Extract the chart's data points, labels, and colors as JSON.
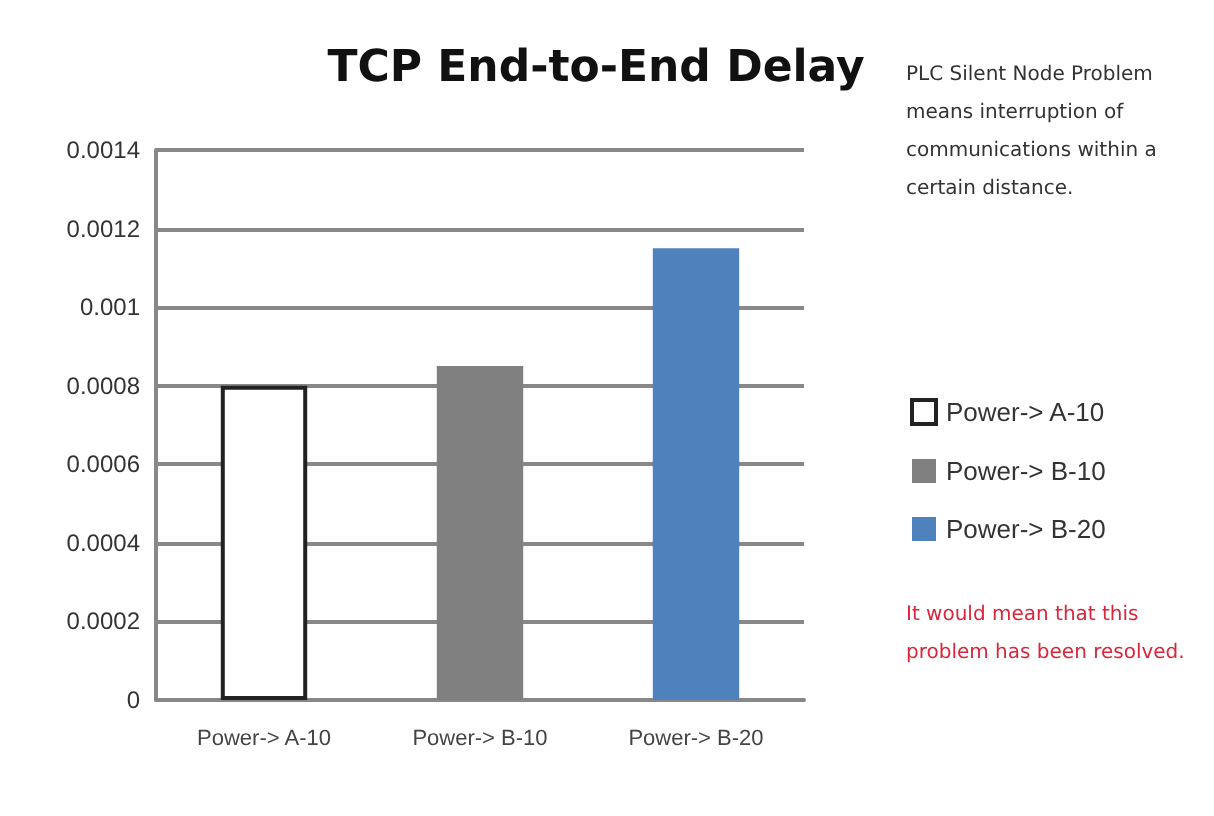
{
  "chart_data": {
    "type": "bar",
    "title": "TCP End-to-End Delay",
    "categories": [
      "Power-> A-10",
      "Power-> B-10",
      "Power-> B-20"
    ],
    "series": [
      {
        "name": "Power-> A-10",
        "color": "#ffffff",
        "values": [
          0.0008,
          null,
          null
        ]
      },
      {
        "name": "Power-> B-10",
        "color": "#808080",
        "values": [
          null,
          0.00085,
          null
        ]
      },
      {
        "name": "Power-> B-20",
        "color": "#4f81bd",
        "values": [
          null,
          null,
          0.00115
        ]
      }
    ],
    "ylim": [
      0,
      0.0014
    ],
    "yticks": [
      0,
      0.0002,
      0.0004,
      0.0006,
      0.0008,
      0.001,
      0.0012,
      0.0014
    ],
    "grid": "y",
    "legend": "right",
    "annotations": [
      "PLC Silent Node Problem means interruption of communications within a certain distance.",
      "It would mean that this problem has been resolved."
    ]
  }
}
